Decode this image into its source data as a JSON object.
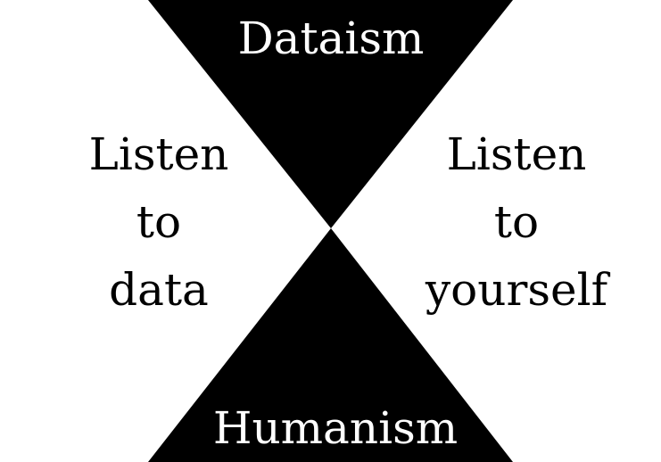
{
  "colors": {
    "background": "#ffffff",
    "triangle": "#000000",
    "triangle_text": "#ffffff",
    "side_text": "#000000"
  },
  "top_label": "Dataism",
  "bottom_label": "Humanism",
  "left_lines": [
    "Listen",
    "to",
    "data"
  ],
  "right_lines": [
    "Listen",
    "to",
    "yourself"
  ]
}
